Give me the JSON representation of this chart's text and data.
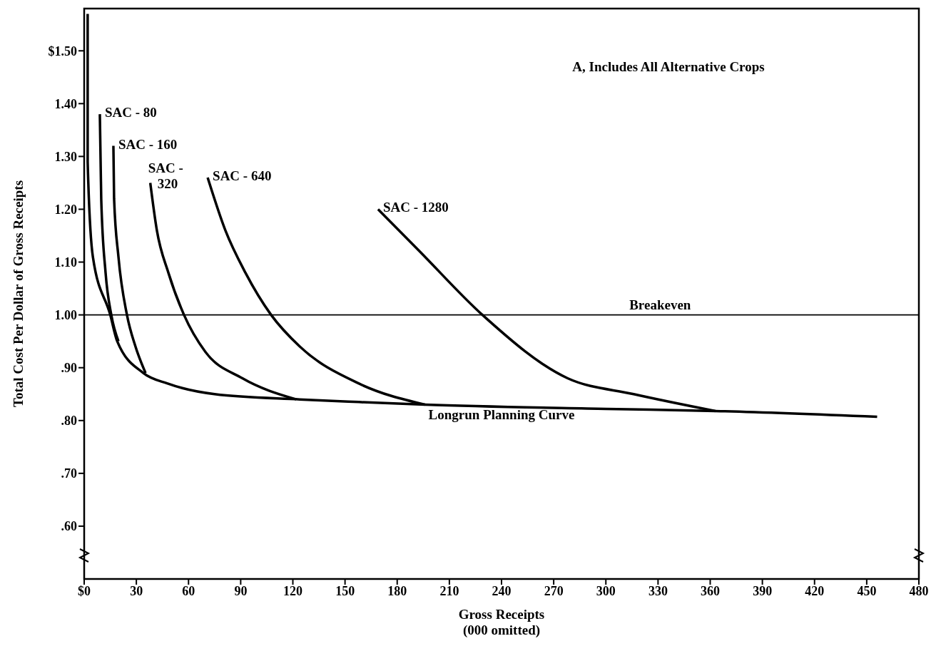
{
  "chart_data": {
    "type": "line",
    "annotations": [
      "A, Includes All Alternative Crops",
      "Longrun Planning Curve"
    ],
    "xlabel": "Gross Receipts\n(000 omitted)",
    "ylabel": "Total Cost Per Dollar of Gross Receipts",
    "xlim": [
      0,
      480
    ],
    "xticks": [
      {
        "value": 0,
        "label": "$0"
      },
      30,
      60,
      90,
      120,
      150,
      180,
      210,
      240,
      270,
      300,
      330,
      360,
      390,
      420,
      450,
      480
    ],
    "ylim": [
      0.5,
      1.58
    ],
    "yticks": [
      {
        "value": 0.6,
        "label": ".60"
      },
      {
        "value": 0.7,
        "label": ".70"
      },
      {
        "value": 0.8,
        "label": ".80"
      },
      {
        "value": 0.9,
        "label": ".90"
      },
      {
        "value": 1.0,
        "label": "1.00"
      },
      {
        "value": 1.1,
        "label": "1.10"
      },
      {
        "value": 1.2,
        "label": "1.20"
      },
      {
        "value": 1.3,
        "label": "1.30"
      },
      {
        "value": 1.4,
        "label": "1.40"
      },
      {
        "value": 1.5,
        "label": "$1.50"
      }
    ],
    "grid": false,
    "legend": false,
    "marker": "none",
    "line_style": "solid",
    "ref_lines": [
      {
        "axis": "y",
        "value": 1.0,
        "label": "Breakeven",
        "color": "#000000"
      }
    ],
    "series": [
      {
        "color": "#000000",
        "x": [
          2,
          2,
          5,
          15,
          19,
          34,
          48,
          75,
          124,
          158,
          196,
          300,
          363,
          456
        ],
        "values": [
          1.57,
          1.29,
          1.11,
          1.0,
          0.95,
          0.89,
          0.87,
          0.85,
          0.84,
          0.835,
          0.83,
          0.822,
          0.818,
          0.807
        ]
      },
      {
        "name": "SAC - 80",
        "color": "#000000",
        "x": [
          9,
          9.8,
          12.3,
          15.6,
          19.7
        ],
        "values": [
          1.38,
          1.22,
          1.08,
          1.0,
          0.95
        ]
      },
      {
        "name": "SAC - 160",
        "color": "#000000",
        "x": [
          16.8,
          17.2,
          19.7,
          24.6,
          29.5,
          35.3
        ],
        "values": [
          1.32,
          1.22,
          1.11,
          1.0,
          0.94,
          0.89
        ]
      },
      {
        "name": "SAC - 320",
        "color": "#000000",
        "x": [
          38,
          41.8,
          48.4,
          57.4,
          69.7,
          91,
          122
        ],
        "values": [
          1.25,
          1.16,
          1.08,
          1.0,
          0.93,
          0.88,
          0.84
        ]
      },
      {
        "name": "SAC - 640",
        "color": "#000000",
        "x": [
          71,
          81.2,
          92.7,
          107.5,
          124,
          158,
          196
        ],
        "values": [
          1.26,
          1.16,
          1.08,
          1.0,
          0.94,
          0.87,
          0.83
        ]
      },
      {
        "name": "SAC - 1280",
        "color": "#000000",
        "x": [
          169,
          193,
          229,
          278,
          316,
          363
        ],
        "values": [
          1.2,
          1.12,
          1.0,
          0.88,
          0.85,
          0.818
        ]
      }
    ]
  }
}
